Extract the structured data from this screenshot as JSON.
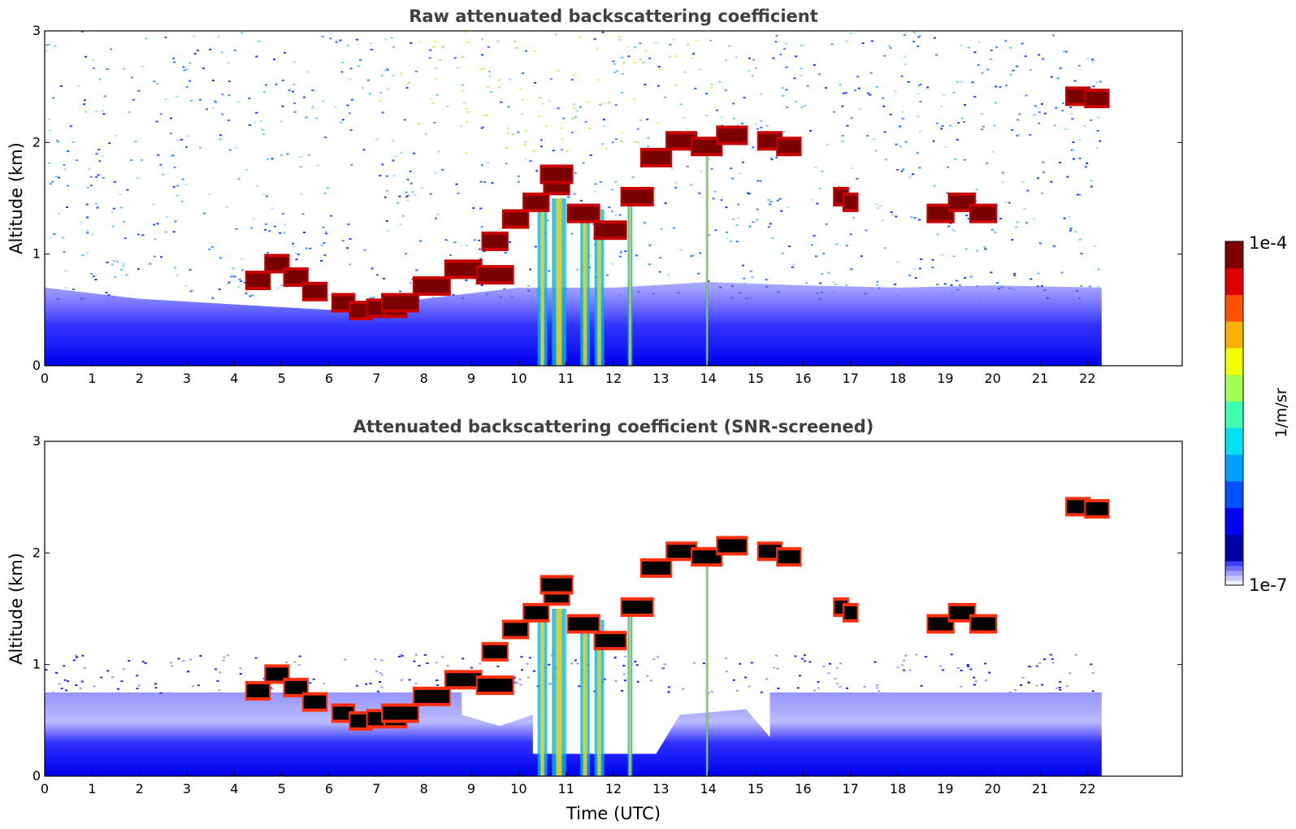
{
  "chart_data": [
    {
      "type": "heatmap",
      "title": "Raw attenuated backscattering coefficient",
      "ylabel": "Altitude (km)",
      "xlabel": "",
      "xlim": [
        0,
        24
      ],
      "ylim": [
        0,
        3
      ],
      "xticks": [
        "0",
        "1",
        "2",
        "3",
        "4",
        "5",
        "6",
        "7",
        "8",
        "9",
        "10",
        "11",
        "12",
        "13",
        "14",
        "15",
        "16",
        "17",
        "18",
        "19",
        "20",
        "21",
        "22"
      ],
      "yticks": [
        "0",
        "1",
        "2",
        "3"
      ],
      "data_end_time": 22.3,
      "boundary_layer_top_km": [
        [
          0,
          0.7
        ],
        [
          2,
          0.6
        ],
        [
          4,
          0.55
        ],
        [
          6,
          0.5
        ],
        [
          8,
          0.6
        ],
        [
          10,
          0.7
        ],
        [
          12,
          0.7
        ],
        [
          14,
          0.75
        ],
        [
          16,
          0.72
        ],
        [
          18,
          0.7
        ],
        [
          20,
          0.72
        ],
        [
          22.3,
          0.7
        ]
      ],
      "cloud_layers": [
        {
          "t0": 4.5,
          "t1": 5.7,
          "alt_km": [
            0.75,
            0.9,
            0.78,
            0.65
          ]
        },
        {
          "t0": 6.3,
          "t1": 7.4,
          "alt_km": [
            0.55,
            0.48,
            0.5,
            0.5
          ]
        },
        {
          "t0": 7.5,
          "t1": 9.5,
          "alt_km": [
            0.55,
            0.7,
            0.85,
            0.8
          ]
        },
        {
          "t0": 9.5,
          "t1": 10.8,
          "alt_km": [
            1.1,
            1.3,
            1.45,
            1.6
          ]
        },
        {
          "t0": 10.8,
          "t1": 12.5,
          "alt_km": [
            1.7,
            1.35,
            1.2,
            1.5
          ]
        },
        {
          "t0": 12.9,
          "t1": 14.5,
          "alt_km": [
            1.85,
            2.0,
            1.95,
            2.05
          ]
        },
        {
          "t0": 15.3,
          "t1": 15.7,
          "alt_km": [
            2.0,
            1.95
          ]
        },
        {
          "t0": 16.8,
          "t1": 17.0,
          "alt_km": [
            1.5,
            1.45
          ]
        },
        {
          "t0": 18.9,
          "t1": 19.8,
          "alt_km": [
            1.35,
            1.45,
            1.35
          ]
        },
        {
          "t0": 21.8,
          "t1": 22.2,
          "alt_km": [
            2.4,
            2.38
          ]
        }
      ]
    },
    {
      "type": "heatmap",
      "title": "Attenuated backscattering coefficient (SNR-screened)",
      "ylabel": "Altitude (km)",
      "xlabel": "Time (UTC)",
      "xlim": [
        0,
        24
      ],
      "ylim": [
        0,
        3
      ],
      "xticks": [
        "0",
        "1",
        "2",
        "3",
        "4",
        "5",
        "6",
        "7",
        "8",
        "9",
        "10",
        "11",
        "12",
        "13",
        "14",
        "15",
        "16",
        "17",
        "18",
        "19",
        "20",
        "21",
        "22"
      ],
      "yticks": [
        "0",
        "1",
        "2",
        "3"
      ],
      "data_end_time": 22.3,
      "screened_low_altitude_km": 0.75,
      "cloud_cores": "black"
    }
  ],
  "colorbar": {
    "max_label": "1e-4",
    "min_label": "1e-7",
    "label": "1/m/sr",
    "colormap": [
      "#0000a8",
      "#0000ff",
      "#0050ff",
      "#00a0ff",
      "#00e0f0",
      "#40ffb0",
      "#a0ff50",
      "#f0ff00",
      "#ffb000",
      "#ff5000",
      "#e00000",
      "#800000"
    ],
    "low_shades": [
      "#f0f0ff",
      "#c8c8ff",
      "#a0a0ff",
      "#7070ff",
      "#4040ff"
    ]
  }
}
